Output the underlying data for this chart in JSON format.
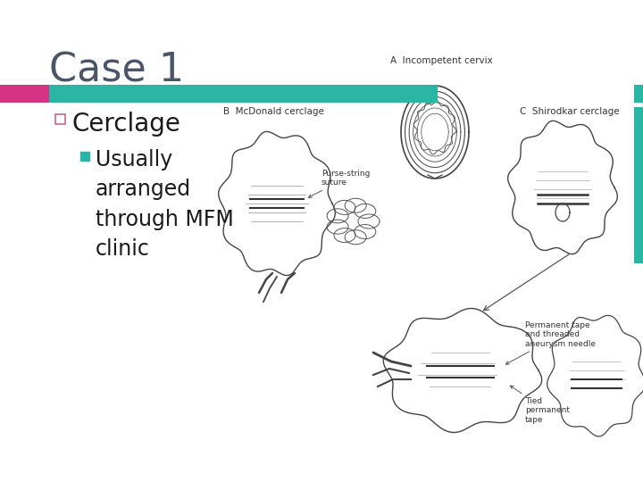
{
  "title": "Case 1",
  "title_color": "#4a5568",
  "title_fontsize": 32,
  "bar_left_color": "#d63384",
  "bar_right_color": "#2ab5a5",
  "bullet1_text": "Cerclage",
  "bullet1_fontsize": 20,
  "bullet1_marker_color": "#cc6688",
  "bullet2_text": "Usually\narranged\nthrough MFM\nclinic",
  "bullet2_fontsize": 17,
  "bullet2_marker_color": "#2ab5a5",
  "bg_color": "#ffffff",
  "diag_label_color": "#333333",
  "diag_line_color": "#555555",
  "label_A": "A  Incompetent cervix",
  "label_B": "B  McDonald cerclage",
  "label_C": "C  Shirodkar cerclage",
  "label_purse": "Purse-string\nsuture",
  "label_perm": "Permanent tape\nand threaded\naneurysm needle",
  "label_tied": "Tied\npermanent\ntape"
}
